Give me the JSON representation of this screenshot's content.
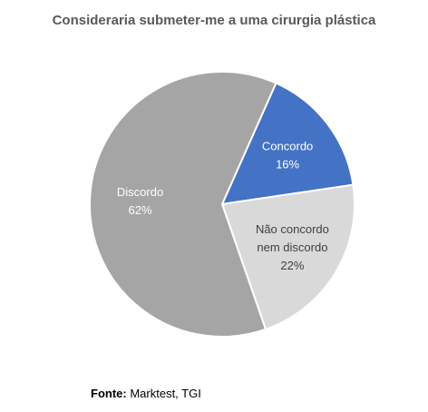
{
  "chart_data": {
    "type": "pie",
    "title": "Consideraria submeter-me a uma cirurgia plástica",
    "slices": [
      {
        "name": "Concordo",
        "value": 16,
        "value_label": "16%",
        "color": "#4472C4",
        "label_color": "#ffffff",
        "label_lines": [
          "Concordo",
          "16%"
        ]
      },
      {
        "name": "Não concordo nem discordo",
        "value": 22,
        "value_label": "22%",
        "color": "#D9D9D9",
        "label_color": "#404040",
        "label_lines": [
          "Não concordo",
          "nem discordo",
          "22%"
        ]
      },
      {
        "name": "Discordo",
        "value": 62,
        "value_label": "62%",
        "color": "#A5A5A5",
        "label_color": "#ffffff",
        "label_lines": [
          "Discordo",
          "62%"
        ]
      }
    ],
    "start_angle_deg": 24,
    "direction": "clockwise",
    "legend": "none"
  },
  "source": {
    "label": "Fonte:",
    "text": "Marktest, TGI"
  }
}
